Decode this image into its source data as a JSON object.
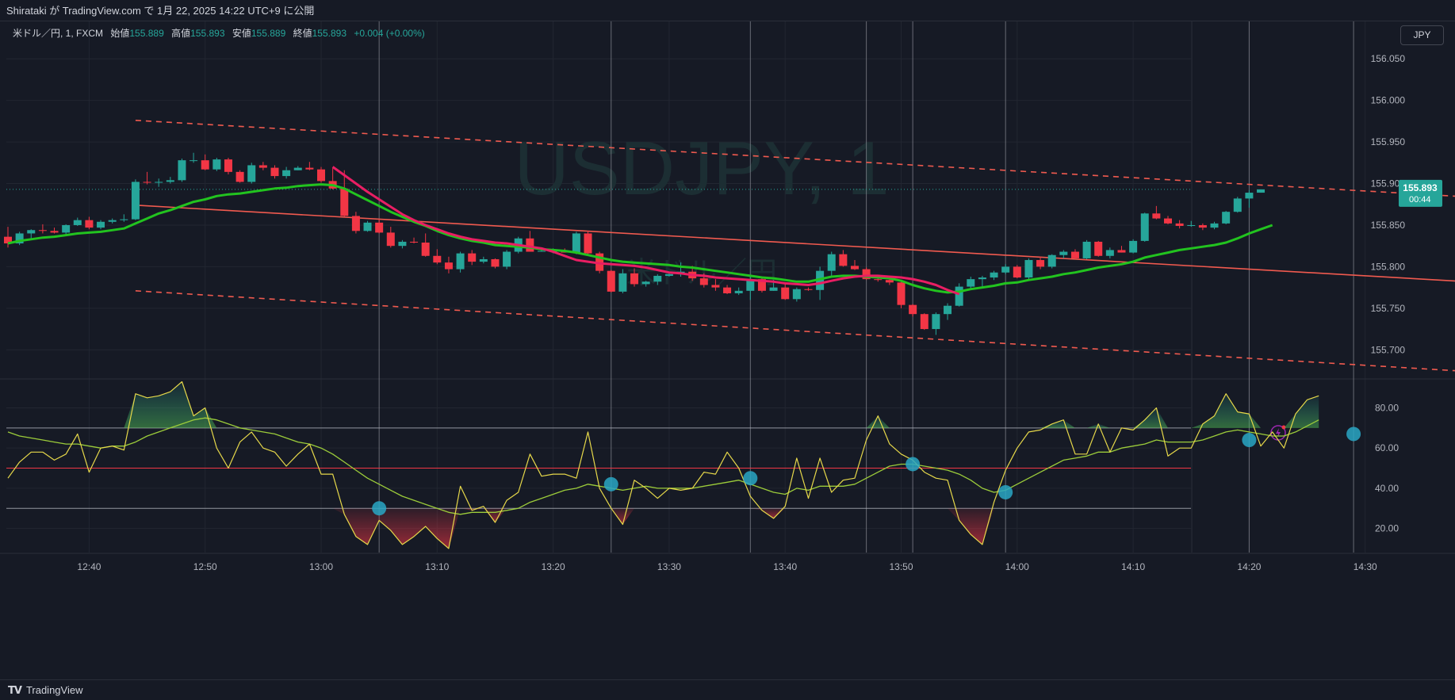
{
  "header": {
    "publish_text": "Shirataki が TradingView.com で 1月 22, 2025 14:22 UTC+9 に公開"
  },
  "legend": {
    "symbol": "米ドル／円, 1, FXCM",
    "open_label": "始値",
    "open": "155.889",
    "high_label": "高値",
    "high": "155.893",
    "low_label": "安値",
    "low": "155.889",
    "close_label": "終値",
    "close": "155.893",
    "change": "+0.004 (+0.00%)"
  },
  "currency_button": "JPY",
  "watermark": {
    "title": "USDJPY, 1",
    "subtitle": "米ドル／円"
  },
  "last_price": {
    "price": "155.893",
    "countdown": "00:44"
  },
  "footer": {
    "brand": "TradingView"
  },
  "colors": {
    "background": "#161a25",
    "up": "#26a69a",
    "down": "#f23645",
    "ema_green": "#22c31f",
    "ema_pink": "#e91e63",
    "trend_line": "#f05a4f",
    "rsi": "#e6d84a",
    "rsi_ma": "#9ccc3a",
    "signal_dot": "#29a7c4"
  },
  "chart_data": [
    {
      "type": "candlestick",
      "title": "USDJPY, 1",
      "price_ticks": [
        "156.050",
        "156.000",
        "155.950",
        "155.900",
        "155.850",
        "155.800",
        "155.750",
        "155.700"
      ],
      "ylim": [
        155.665,
        156.095
      ],
      "time_ticks": [
        "12:40",
        "12:50",
        "13:00",
        "13:10",
        "13:20",
        "13:30",
        "13:40",
        "13:50",
        "14:00",
        "14:10",
        "14:20",
        "14:30"
      ],
      "first_bar_time": "12:33",
      "candles": [
        [
          155.836,
          155.848,
          155.823,
          155.828
        ],
        [
          155.828,
          155.842,
          155.826,
          155.84
        ],
        [
          155.84,
          155.845,
          155.833,
          155.844
        ],
        [
          155.844,
          155.851,
          155.84,
          155.843
        ],
        [
          155.843,
          155.847,
          155.84,
          155.841
        ],
        [
          155.841,
          155.851,
          155.838,
          155.85
        ],
        [
          155.85,
          155.859,
          155.849,
          155.856
        ],
        [
          155.856,
          155.86,
          155.845,
          155.847
        ],
        [
          155.847,
          155.856,
          155.845,
          155.854
        ],
        [
          155.854,
          155.858,
          155.852,
          155.856
        ],
        [
          155.856,
          155.863,
          155.854,
          155.857
        ],
        [
          155.857,
          155.905,
          155.856,
          155.902
        ],
        [
          155.902,
          155.914,
          155.899,
          155.901
        ],
        [
          155.901,
          155.906,
          155.896,
          155.902
        ],
        [
          155.902,
          155.908,
          155.9,
          155.904
        ],
        [
          155.904,
          155.93,
          155.902,
          155.928
        ],
        [
          155.928,
          155.937,
          155.925,
          155.928
        ],
        [
          155.928,
          155.935,
          155.916,
          155.917
        ],
        [
          155.917,
          155.931,
          155.915,
          155.929
        ],
        [
          155.929,
          155.931,
          155.911,
          155.914
        ],
        [
          155.914,
          155.916,
          155.901,
          155.902
        ],
        [
          155.902,
          155.925,
          155.9,
          155.922
        ],
        [
          155.922,
          155.926,
          155.916,
          155.919
        ],
        [
          155.919,
          155.922,
          155.906,
          155.909
        ],
        [
          155.909,
          155.92,
          155.906,
          155.916
        ],
        [
          155.916,
          155.921,
          155.916,
          155.919
        ],
        [
          155.919,
          155.926,
          155.916,
          155.917
        ],
        [
          155.917,
          155.92,
          155.901,
          155.903
        ],
        [
          155.903,
          155.919,
          155.893,
          155.894
        ],
        [
          155.894,
          155.916,
          155.86,
          155.861
        ],
        [
          155.861,
          155.866,
          155.84,
          155.843
        ],
        [
          155.843,
          155.855,
          155.842,
          155.853
        ],
        [
          155.853,
          155.857,
          155.84,
          155.841
        ],
        [
          155.841,
          155.848,
          155.823,
          155.825
        ],
        [
          155.825,
          155.832,
          155.822,
          155.83
        ],
        [
          155.83,
          155.835,
          155.828,
          155.829
        ],
        [
          155.829,
          155.84,
          155.812,
          155.813
        ],
        [
          155.813,
          155.821,
          155.803,
          155.805
        ],
        [
          155.805,
          155.812,
          155.792,
          155.797
        ],
        [
          155.797,
          155.818,
          155.793,
          155.816
        ],
        [
          155.816,
          155.82,
          155.802,
          155.806
        ],
        [
          155.806,
          155.812,
          155.804,
          155.809
        ],
        [
          155.809,
          155.81,
          155.798,
          155.8
        ],
        [
          155.8,
          155.82,
          155.797,
          155.818
        ],
        [
          155.818,
          155.836,
          155.816,
          155.834
        ],
        [
          155.834,
          155.843,
          155.82,
          155.818
        ],
        [
          155.818,
          155.821,
          155.818,
          155.819
        ],
        [
          155.819,
          155.822,
          155.816,
          155.819
        ],
        [
          155.819,
          155.822,
          155.817,
          155.817
        ],
        [
          155.817,
          155.842,
          155.815,
          155.84
        ],
        [
          155.84,
          155.843,
          155.814,
          155.816
        ],
        [
          155.816,
          155.818,
          155.792,
          155.795
        ],
        [
          155.795,
          155.796,
          155.769,
          155.77
        ],
        [
          155.77,
          155.797,
          155.768,
          155.792
        ],
        [
          155.792,
          155.798,
          155.776,
          155.779
        ],
        [
          155.779,
          155.783,
          155.776,
          155.782
        ],
        [
          155.782,
          155.791,
          155.778,
          155.789
        ],
        [
          155.789,
          155.792,
          155.788,
          155.791
        ],
        [
          155.791,
          155.805,
          155.788,
          155.794
        ],
        [
          155.794,
          155.801,
          155.783,
          155.786
        ],
        [
          155.786,
          155.792,
          155.775,
          155.778
        ],
        [
          155.778,
          155.785,
          155.771,
          155.775
        ],
        [
          155.775,
          155.778,
          155.767,
          155.768
        ],
        [
          155.768,
          155.775,
          155.766,
          155.771
        ],
        [
          155.771,
          155.788,
          155.76,
          155.785
        ],
        [
          155.785,
          155.788,
          155.769,
          155.771
        ],
        [
          155.771,
          155.784,
          155.771,
          155.775
        ],
        [
          155.775,
          155.781,
          155.76,
          155.761
        ],
        [
          155.761,
          155.775,
          155.758,
          155.773
        ],
        [
          155.773,
          155.775,
          155.771,
          155.772
        ],
        [
          155.772,
          155.8,
          155.76,
          155.795
        ],
        [
          155.795,
          155.818,
          155.788,
          155.815
        ],
        [
          155.815,
          155.82,
          155.8,
          155.801
        ],
        [
          155.801,
          155.808,
          155.796,
          155.797
        ],
        [
          155.797,
          155.799,
          155.784,
          155.785
        ],
        [
          155.785,
          155.788,
          155.782,
          155.784
        ],
        [
          155.784,
          155.788,
          155.778,
          155.781
        ],
        [
          155.781,
          155.782,
          155.75,
          155.754
        ],
        [
          155.754,
          155.755,
          155.74,
          155.743
        ],
        [
          155.743,
          155.744,
          155.724,
          155.725
        ],
        [
          155.725,
          155.745,
          155.718,
          155.743
        ],
        [
          155.743,
          155.756,
          155.736,
          155.753
        ],
        [
          155.753,
          155.78,
          155.752,
          155.776
        ],
        [
          155.776,
          155.788,
          155.774,
          155.785
        ],
        [
          155.785,
          155.789,
          155.776,
          155.787
        ],
        [
          155.787,
          155.795,
          155.784,
          155.793
        ],
        [
          155.793,
          155.803,
          155.791,
          155.8
        ],
        [
          155.8,
          155.802,
          155.786,
          155.787
        ],
        [
          155.787,
          155.81,
          155.785,
          155.808
        ],
        [
          155.808,
          155.812,
          155.797,
          155.8
        ],
        [
          155.8,
          155.815,
          155.798,
          155.814
        ],
        [
          155.814,
          155.82,
          155.81,
          155.818
        ],
        [
          155.818,
          155.821,
          155.809,
          155.81
        ],
        [
          155.81,
          155.832,
          155.809,
          155.83
        ],
        [
          155.83,
          155.831,
          155.812,
          155.813
        ],
        [
          155.813,
          155.823,
          155.81,
          155.82
        ],
        [
          155.82,
          155.825,
          155.817,
          155.817
        ],
        [
          155.817,
          155.833,
          155.816,
          155.831
        ],
        [
          155.831,
          155.865,
          155.83,
          155.864
        ],
        [
          155.864,
          155.873,
          155.857,
          155.858
        ],
        [
          155.858,
          155.861,
          155.851,
          155.852
        ],
        [
          155.852,
          155.856,
          155.846,
          155.849
        ],
        [
          155.849,
          155.855,
          155.848,
          155.85
        ],
        [
          155.85,
          155.852,
          155.844,
          155.847
        ],
        [
          155.847,
          155.854,
          155.845,
          155.852
        ],
        [
          155.852,
          155.867,
          155.851,
          155.866
        ],
        [
          155.866,
          155.884,
          155.865,
          155.882
        ],
        [
          155.882,
          155.892,
          155.871,
          155.889
        ],
        [
          155.889,
          155.893,
          155.889,
          155.893
        ]
      ],
      "ema_green": [
        155.828,
        155.831,
        155.833,
        155.835,
        155.836,
        155.838,
        155.84,
        155.841,
        155.842,
        155.844,
        155.846,
        155.852,
        155.858,
        155.864,
        155.868,
        155.873,
        155.878,
        155.881,
        155.885,
        155.887,
        155.888,
        155.89,
        155.892,
        155.894,
        155.895,
        155.897,
        155.898,
        155.899,
        155.898,
        155.894,
        155.887,
        155.88,
        155.873,
        155.866,
        155.86,
        155.854,
        155.849,
        155.843,
        155.838,
        155.834,
        155.831,
        155.829,
        155.826,
        155.825,
        155.824,
        155.823,
        155.821,
        155.82,
        155.819,
        155.817,
        155.814,
        155.811,
        155.808,
        155.806,
        155.805,
        155.804,
        155.803,
        155.802,
        155.8,
        155.799,
        155.797,
        155.795,
        155.793,
        155.791,
        155.789,
        155.787,
        155.786,
        155.784,
        155.782,
        155.782,
        155.785,
        155.788,
        155.789,
        155.789,
        155.788,
        155.787,
        155.786,
        155.783,
        155.778,
        155.774,
        155.771,
        155.769,
        155.77,
        155.773,
        155.775,
        155.777,
        155.78,
        155.781,
        155.784,
        155.786,
        155.788,
        155.791,
        155.793,
        155.796,
        155.799,
        155.801,
        155.803,
        155.806,
        155.811,
        155.814,
        155.817,
        155.82,
        155.822,
        155.824,
        155.826,
        155.829,
        155.834,
        155.84,
        155.845,
        155.85
      ],
      "ema_pink": {
        "start_index": 28,
        "values": [
          155.92,
          155.91,
          155.9,
          155.89,
          155.881,
          155.872,
          155.863,
          155.856,
          155.85,
          155.845,
          155.84,
          155.836,
          155.833,
          155.831,
          155.829,
          155.828,
          155.826,
          155.824,
          155.822,
          155.818,
          155.813,
          155.808,
          155.806,
          155.804,
          155.803,
          155.802,
          155.801,
          155.799,
          155.796,
          155.793,
          155.792,
          155.79,
          155.789,
          155.787,
          155.786,
          155.785,
          155.784,
          155.783,
          155.782,
          155.78,
          155.779,
          155.778,
          155.78,
          155.783,
          155.786,
          155.788,
          155.789,
          155.789,
          155.788,
          155.787,
          155.785,
          155.782,
          155.778,
          155.772,
          155.767
        ]
      },
      "trend_center": [
        [
          11,
          155.874
        ],
        [
          127,
          155.781
        ]
      ],
      "trend_upper": [
        [
          11,
          155.976
        ],
        [
          127,
          155.883
        ]
      ],
      "trend_lower": [
        [
          11,
          155.771
        ],
        [
          127,
          155.673
        ]
      ]
    },
    {
      "type": "line",
      "name": "RSI",
      "y_ticks": [
        "80.00",
        "60.00",
        "40.00",
        "20.00"
      ],
      "ylim": [
        8,
        94
      ],
      "levels": {
        "upper": 70,
        "middle": 50,
        "lower": 30
      },
      "rsi": [
        45,
        53,
        58,
        58,
        54,
        57,
        67,
        48,
        60,
        61,
        59,
        87,
        85,
        86,
        88,
        93,
        76,
        80,
        60,
        50,
        63,
        68,
        60,
        58,
        51,
        57,
        62,
        47,
        47,
        27,
        16,
        12,
        24,
        19,
        12,
        16,
        21,
        15,
        10,
        41,
        29,
        31,
        23,
        34,
        38,
        57,
        46,
        47,
        47,
        45,
        68,
        40,
        30,
        22,
        44,
        40,
        35,
        40,
        39,
        40,
        48,
        47,
        58,
        50,
        36,
        29,
        25,
        31,
        55,
        35,
        55,
        38,
        44,
        45,
        64,
        76,
        62,
        57,
        54,
        48,
        45,
        44,
        24,
        17,
        12,
        33,
        49,
        60,
        68,
        69,
        72,
        74,
        57,
        57,
        72,
        58,
        70,
        69,
        74,
        80,
        56,
        60,
        60,
        72,
        76,
        87,
        78,
        77,
        61,
        68,
        60,
        77,
        84,
        86
      ],
      "rsi_ma": [
        68,
        66,
        65,
        64,
        63,
        62,
        62,
        61,
        60,
        61,
        61,
        63,
        66,
        68,
        70,
        72,
        74,
        75,
        74,
        72,
        70,
        69,
        68,
        67,
        65,
        63,
        62,
        60,
        57,
        53,
        49,
        45,
        42,
        39,
        36,
        34,
        32,
        30,
        28,
        27,
        28,
        28,
        28,
        29,
        30,
        33,
        35,
        37,
        39,
        40,
        42,
        41,
        40,
        39,
        40,
        41,
        40,
        40,
        40,
        40,
        41,
        42,
        43,
        44,
        42,
        40,
        38,
        37,
        40,
        39,
        41,
        41,
        41,
        42,
        45,
        48,
        51,
        52,
        52,
        51,
        50,
        49,
        47,
        44,
        40,
        38,
        39,
        42,
        45,
        48,
        51,
        54,
        55,
        56,
        58,
        58,
        60,
        61,
        62,
        64,
        63,
        63,
        63,
        64,
        66,
        68,
        69,
        68,
        67,
        66,
        66,
        68,
        71,
        74
      ],
      "signal_dots": [
        [
          32,
          30
        ],
        [
          52,
          42
        ],
        [
          64,
          45
        ],
        [
          78,
          52
        ],
        [
          86,
          38
        ],
        [
          107,
          64
        ],
        [
          116,
          67
        ]
      ]
    }
  ]
}
